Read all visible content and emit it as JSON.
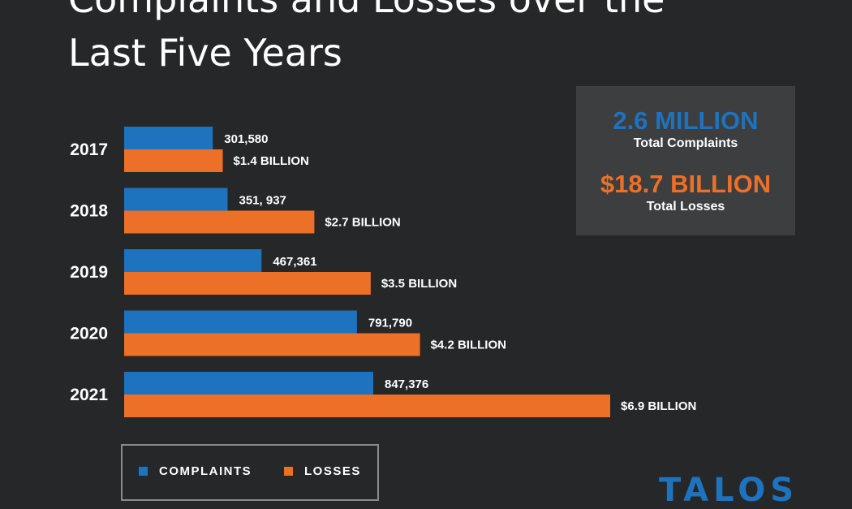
{
  "title": {
    "line1": "Complaints and Losses over the",
    "line2": "Last Five Years"
  },
  "colors": {
    "complaints": "#1e73be",
    "losses": "#ec7027",
    "background": "#262729",
    "stats_box": "#3c3e40"
  },
  "stats": {
    "complaints_value": "2.6 MILLION",
    "complaints_label": "Total Complaints",
    "losses_value": "$18.7 BILLION",
    "losses_label": "Total Losses"
  },
  "legend": {
    "complaints": "COMPLAINTS",
    "losses": "LOSSES"
  },
  "logo": {
    "text": "TALOS"
  },
  "chart_data": {
    "type": "bar",
    "orientation": "horizontal",
    "title": "Complaints and Losses over the Last Five Years",
    "categories": [
      "2017",
      "2018",
      "2019",
      "2020",
      "2021"
    ],
    "series": [
      {
        "name": "COMPLAINTS",
        "values": [
          301580,
          351937,
          467361,
          791790,
          847376
        ],
        "labels": [
          "301,580",
          "351, 937",
          "467,361",
          "791,790",
          "847,376"
        ]
      },
      {
        "name": "LOSSES",
        "unit": "billion USD",
        "values": [
          1.4,
          2.7,
          3.5,
          4.2,
          6.9
        ],
        "labels": [
          "$1.4 BILLION",
          "$2.7 BILLION",
          "$3.5 BILLION",
          "$4.2 BILLION",
          "$6.9 BILLION"
        ]
      }
    ],
    "grid": false,
    "legend_position": "bottom-left"
  }
}
